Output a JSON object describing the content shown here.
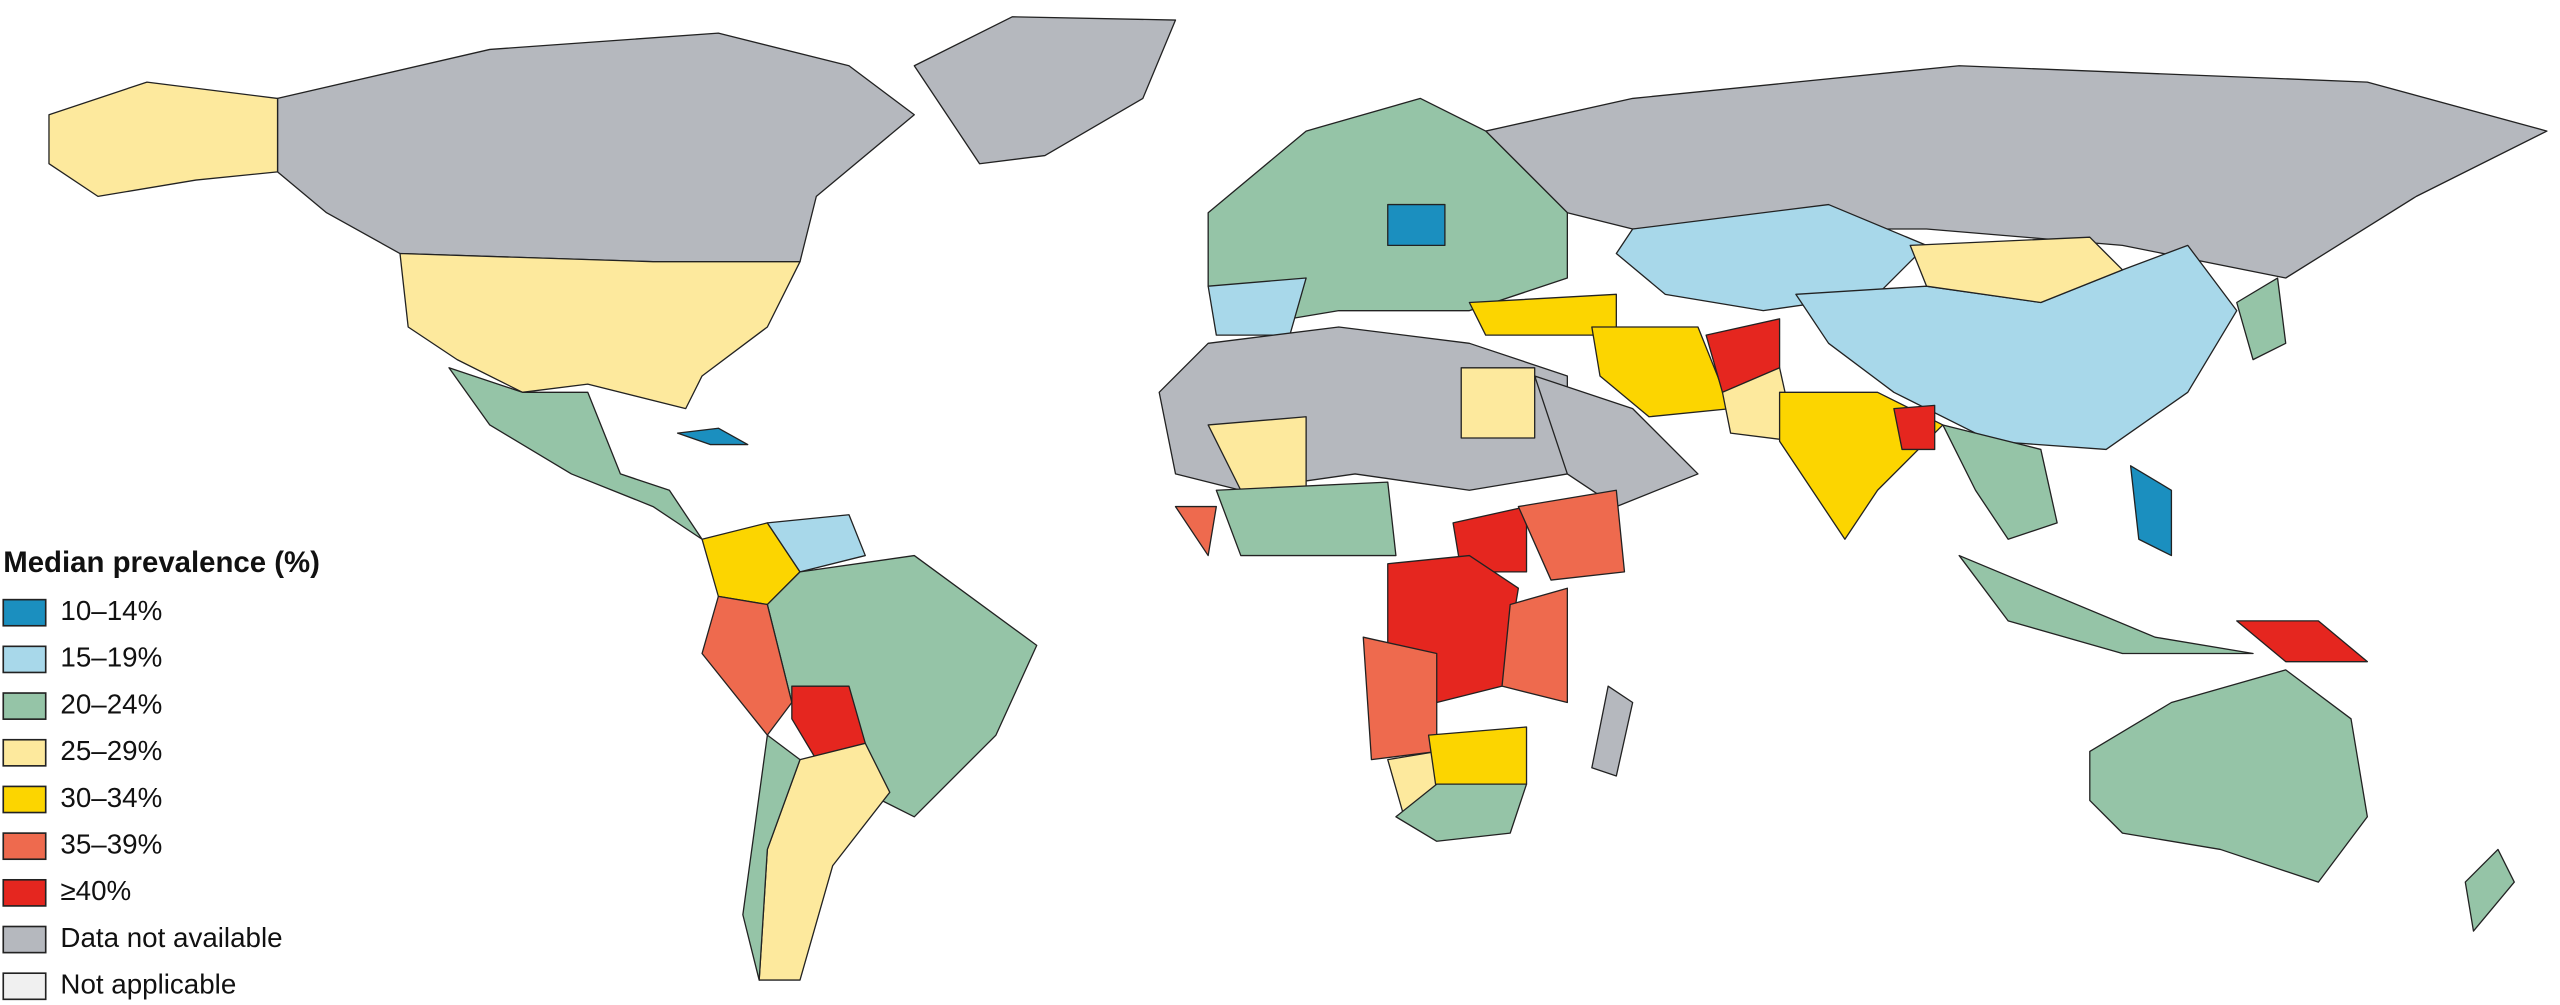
{
  "legend": {
    "title": "Median prevalence (%)",
    "items": [
      {
        "label": "10–14%",
        "color": "#1b8fbf"
      },
      {
        "label": "15–19%",
        "color": "#a8d8ea"
      },
      {
        "label": "20–24%",
        "color": "#95c4a7"
      },
      {
        "label": "25–29%",
        "color": "#fde99d"
      },
      {
        "label": "30–34%",
        "color": "#fcd500"
      },
      {
        "label": "35–39%",
        "color": "#ee6a4e"
      },
      {
        "label": "≥40%",
        "color": "#e5261f"
      },
      {
        "label": "Data not available",
        "color": "#b5b8be"
      },
      {
        "label": "Not applicable",
        "color": "#f0f0f0"
      }
    ]
  }
}
